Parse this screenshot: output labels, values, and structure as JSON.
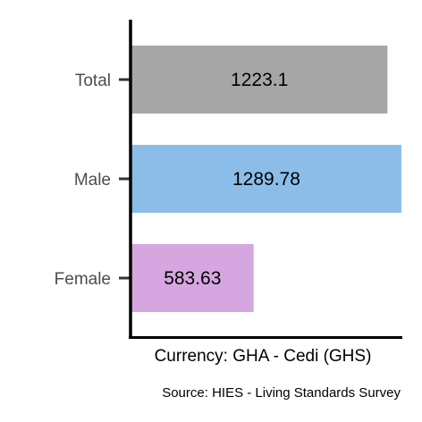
{
  "chart_data": {
    "type": "bar",
    "orientation": "horizontal",
    "categories": [
      "Total",
      "Male",
      "Female"
    ],
    "values": [
      1223.1,
      1289.78,
      583.63
    ],
    "value_labels": [
      "1223.1",
      "1289.78",
      "583.63"
    ],
    "colors": [
      "#a6a6a6",
      "#8bbde8",
      "#d6a6e0"
    ],
    "xlabel": "Currency: GHA - Cedi (GHS)",
    "ylabel": "",
    "caption": "Source:  HIES - Living Standards Survey",
    "xlim": [
      0,
      1290
    ],
    "grid": false,
    "legend": "none"
  }
}
